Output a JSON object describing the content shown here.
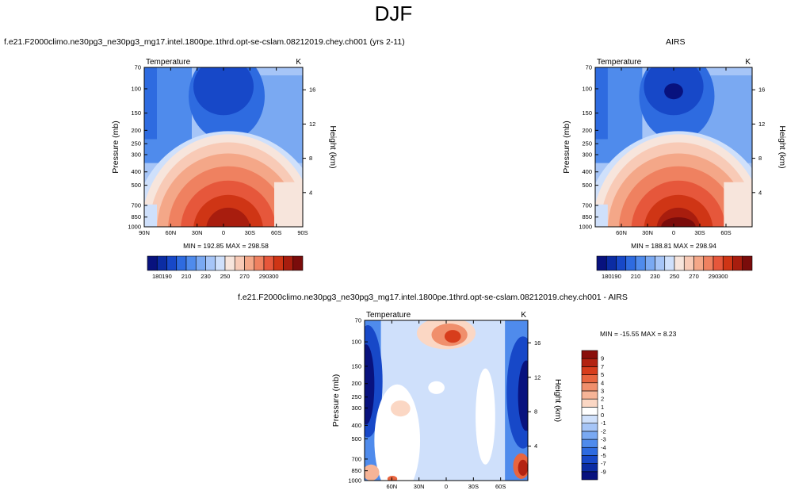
{
  "figure": {
    "title": "DJF"
  },
  "colors": {
    "temperature_levels": [
      "#08127e",
      "#0b2ca3",
      "#1748c8",
      "#2e6be0",
      "#4f8bec",
      "#7aa9f2",
      "#a6c5f7",
      "#cfe0fb",
      "#f7e5dc",
      "#f8cab6",
      "#f4a788",
      "#ef8160",
      "#e6573b",
      "#cf3515",
      "#a81d0e",
      "#7a0c0b"
    ],
    "difference_levels": [
      "#08127e",
      "#0b2ca3",
      "#1748c8",
      "#2e6be0",
      "#4f8bec",
      "#7aa9f2",
      "#a6c5f7",
      "#cfe0fb",
      "#ffffff",
      "#fbd7c4",
      "#f6b497",
      "#f08f6c",
      "#e8653f",
      "#d73d1c",
      "#b32311",
      "#8a0f0b"
    ]
  },
  "chart_data": [
    {
      "type": "heatmap",
      "title": "f.e21.F2000climo.ne30pg3_ne30pg3_mg17.intel.1800pe.1thrd.opt-se-cslam.08212019.chey.ch001 (yrs 2-11)",
      "left_label": "Temperature",
      "right_label": "K",
      "ylabel": "Pressure (mb)",
      "y2label": "Height (km)",
      "x_ticks": [
        "90N",
        "60N",
        "30N",
        "0",
        "30S",
        "60S",
        "90S"
      ],
      "x_tick_values": [
        90,
        60,
        30,
        0,
        -30,
        -60,
        -90
      ],
      "xlim": [
        90,
        -90
      ],
      "y_ticks": [
        "70",
        "100",
        "150",
        "200",
        "250",
        "300",
        "400",
        "500",
        "700",
        "850",
        "1000"
      ],
      "y_tick_values": [
        70,
        100,
        150,
        200,
        250,
        300,
        400,
        500,
        700,
        850,
        1000
      ],
      "y_scale": "log",
      "ylim": [
        1000,
        70
      ],
      "y2_ticks": [
        "4",
        "8",
        "12",
        "16"
      ],
      "y2_tick_values": [
        4,
        8,
        12,
        16
      ],
      "stats_text": "MIN = 192.85   MAX = 298.58",
      "colorbar_ticks": [
        "180",
        "190",
        "210",
        "230",
        "250",
        "270",
        "290",
        "300"
      ],
      "colorbar_levels": [
        170,
        180,
        190,
        200,
        210,
        220,
        230,
        240,
        250,
        260,
        270,
        280,
        290,
        300,
        310
      ]
    },
    {
      "type": "heatmap",
      "title": "AIRS",
      "left_label": "Temperature",
      "right_label": "K",
      "ylabel": "Pressure (mb)",
      "y2label": "Height (km)",
      "x_ticks": [
        "60N",
        "30N",
        "0",
        "30S",
        "60S"
      ],
      "x_tick_values": [
        60,
        30,
        0,
        -30,
        -60
      ],
      "xlim": [
        90,
        -90
      ],
      "y_ticks": [
        "70",
        "100",
        "150",
        "200",
        "250",
        "300",
        "400",
        "500",
        "700",
        "850",
        "1000"
      ],
      "y_tick_values": [
        70,
        100,
        150,
        200,
        250,
        300,
        400,
        500,
        700,
        850,
        1000
      ],
      "y_scale": "log",
      "ylim": [
        1000,
        70
      ],
      "y2_ticks": [
        "4",
        "8",
        "12",
        "16"
      ],
      "y2_tick_values": [
        4,
        8,
        12,
        16
      ],
      "stats_text": "MIN = 188.81   MAX = 298.94",
      "colorbar_ticks": [
        "180",
        "190",
        "210",
        "230",
        "250",
        "270",
        "290",
        "300"
      ],
      "colorbar_levels": [
        170,
        180,
        190,
        200,
        210,
        220,
        230,
        240,
        250,
        260,
        270,
        280,
        290,
        300,
        310
      ]
    },
    {
      "type": "heatmap",
      "title": "f.e21.F2000climo.ne30pg3_ne30pg3_mg17.intel.1800pe.1thrd.opt-se-cslam.08212019.chey.ch001 - AIRS",
      "left_label": "Temperature",
      "right_label": "K",
      "ylabel": "Pressure (mb)",
      "y2label": "Height (km)",
      "x_ticks": [
        "60N",
        "30N",
        "0",
        "30S",
        "60S"
      ],
      "x_tick_values": [
        60,
        30,
        0,
        -30,
        -60
      ],
      "xlim": [
        90,
        -90
      ],
      "y_ticks": [
        "70",
        "100",
        "150",
        "200",
        "250",
        "300",
        "400",
        "500",
        "700",
        "850",
        "1000"
      ],
      "y_tick_values": [
        70,
        100,
        150,
        200,
        250,
        300,
        400,
        500,
        700,
        850,
        1000
      ],
      "y_scale": "log",
      "ylim": [
        1000,
        70
      ],
      "y2_ticks": [
        "4",
        "8",
        "12",
        "16"
      ],
      "y2_tick_values": [
        4,
        8,
        12,
        16
      ],
      "stats_text": "MIN = -15.55   MAX =   8.23",
      "colorbar_ticks": [
        "9",
        "7",
        "5",
        "4",
        "3",
        "2",
        "1",
        "0",
        "-1",
        "-2",
        "-3",
        "-4",
        "-5",
        "-7",
        "-9"
      ],
      "colorbar_orientation": "vertical",
      "colorbar_levels": [
        -11,
        -9,
        -7,
        -5,
        -4,
        -3,
        -2,
        -1,
        0,
        1,
        2,
        3,
        4,
        5,
        7,
        9,
        11
      ]
    }
  ]
}
